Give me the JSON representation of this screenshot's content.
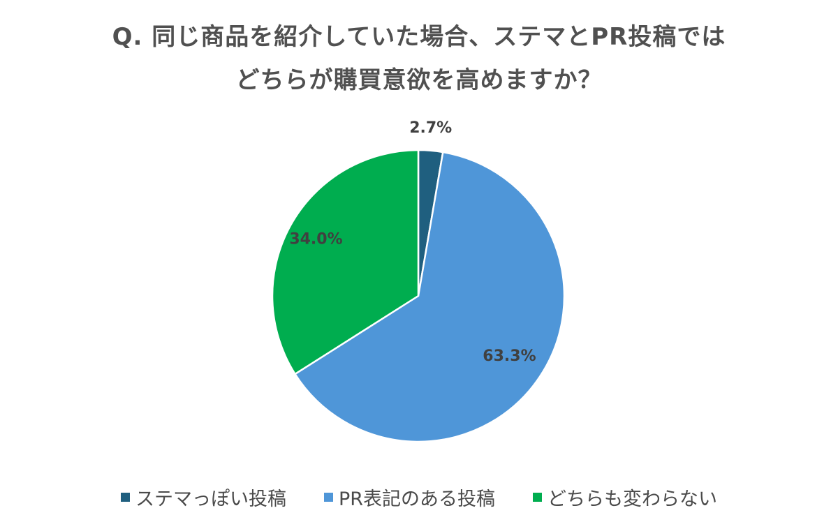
{
  "title": {
    "line1": "Q. 同じ商品を紹介していた場合、ステマとPR投稿では",
    "line2": "どちらが購買意欲を高めますか？"
  },
  "chart_data": {
    "type": "pie",
    "slices": [
      {
        "label": "ステマっぽい投稿",
        "value": 2.7,
        "display": "2.7%",
        "color": "#1f5f7f"
      },
      {
        "label": "PR表記のある投稿",
        "value": 63.3,
        "display": "63.3%",
        "color": "#4f96d8"
      },
      {
        "label": "どちらも変わらない",
        "value": 34.0,
        "display": "34.0%",
        "color": "#00ad4f"
      }
    ],
    "start": "top",
    "direction": "clockwise",
    "legend_position": "bottom"
  },
  "legend": [
    {
      "label": "ステマっぽい投稿",
      "color": "#1f5f7f"
    },
    {
      "label": "PR表記のある投稿",
      "color": "#4f96d8"
    },
    {
      "label": "どちらも変わらない",
      "color": "#00ad4f"
    }
  ],
  "colors": {
    "title": "#505050",
    "label": "#404040",
    "legend_text": "#4a4a4a"
  }
}
